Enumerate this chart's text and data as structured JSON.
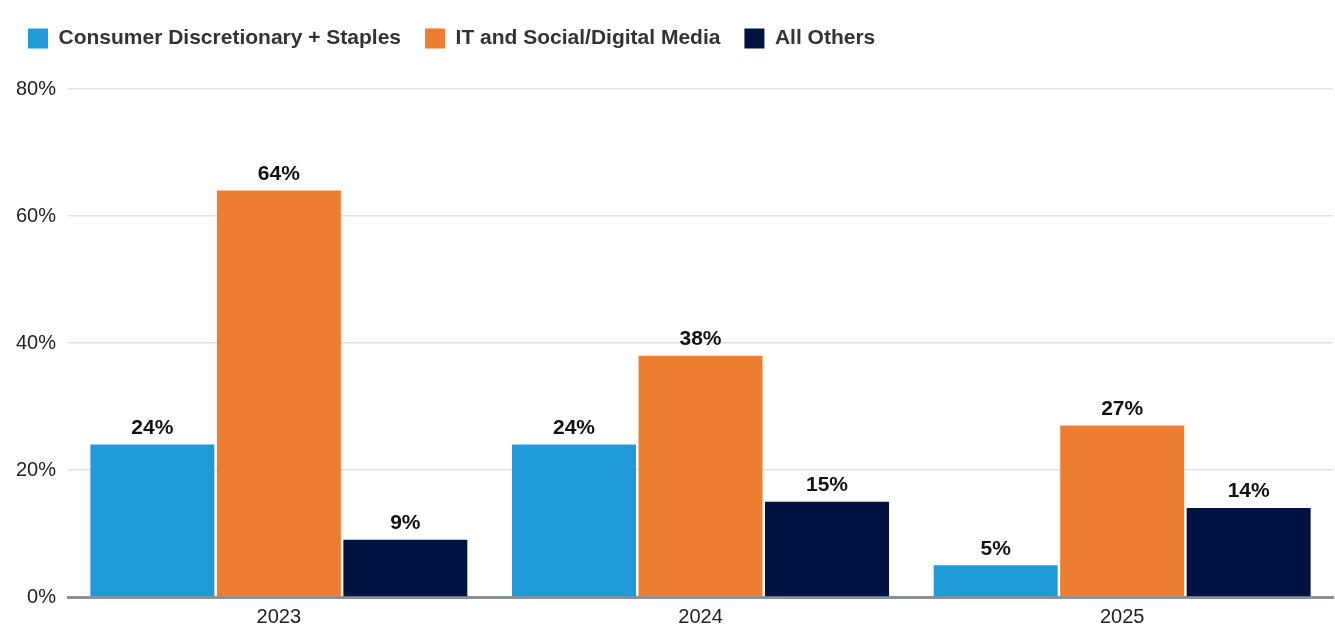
{
  "chart_data": {
    "type": "bar",
    "categories": [
      "2023",
      "2024",
      "2025"
    ],
    "series": [
      {
        "name": "Consumer Discretionary + Staples",
        "color": "#1f9bd7",
        "values": [
          24,
          24,
          5
        ],
        "value_labels": [
          "24%",
          "24%",
          "5%"
        ]
      },
      {
        "name": "IT and Social/Digital Media",
        "color": "#ed7d31",
        "values": [
          64,
          38,
          27
        ],
        "value_labels": [
          "64%",
          "38%",
          "27%"
        ]
      },
      {
        "name": "All Others",
        "color": "#001240",
        "values": [
          9,
          15,
          14
        ],
        "value_labels": [
          "9%",
          "15%",
          "14%"
        ]
      }
    ],
    "ylim": [
      0,
      80
    ],
    "yticks": [
      {
        "value": 0,
        "label": "0%"
      },
      {
        "value": 20,
        "label": "20%"
      },
      {
        "value": 40,
        "label": "40%"
      },
      {
        "value": 60,
        "label": "60%"
      },
      {
        "value": 80,
        "label": "80%"
      }
    ],
    "grid": "y",
    "legend": "top left"
  }
}
